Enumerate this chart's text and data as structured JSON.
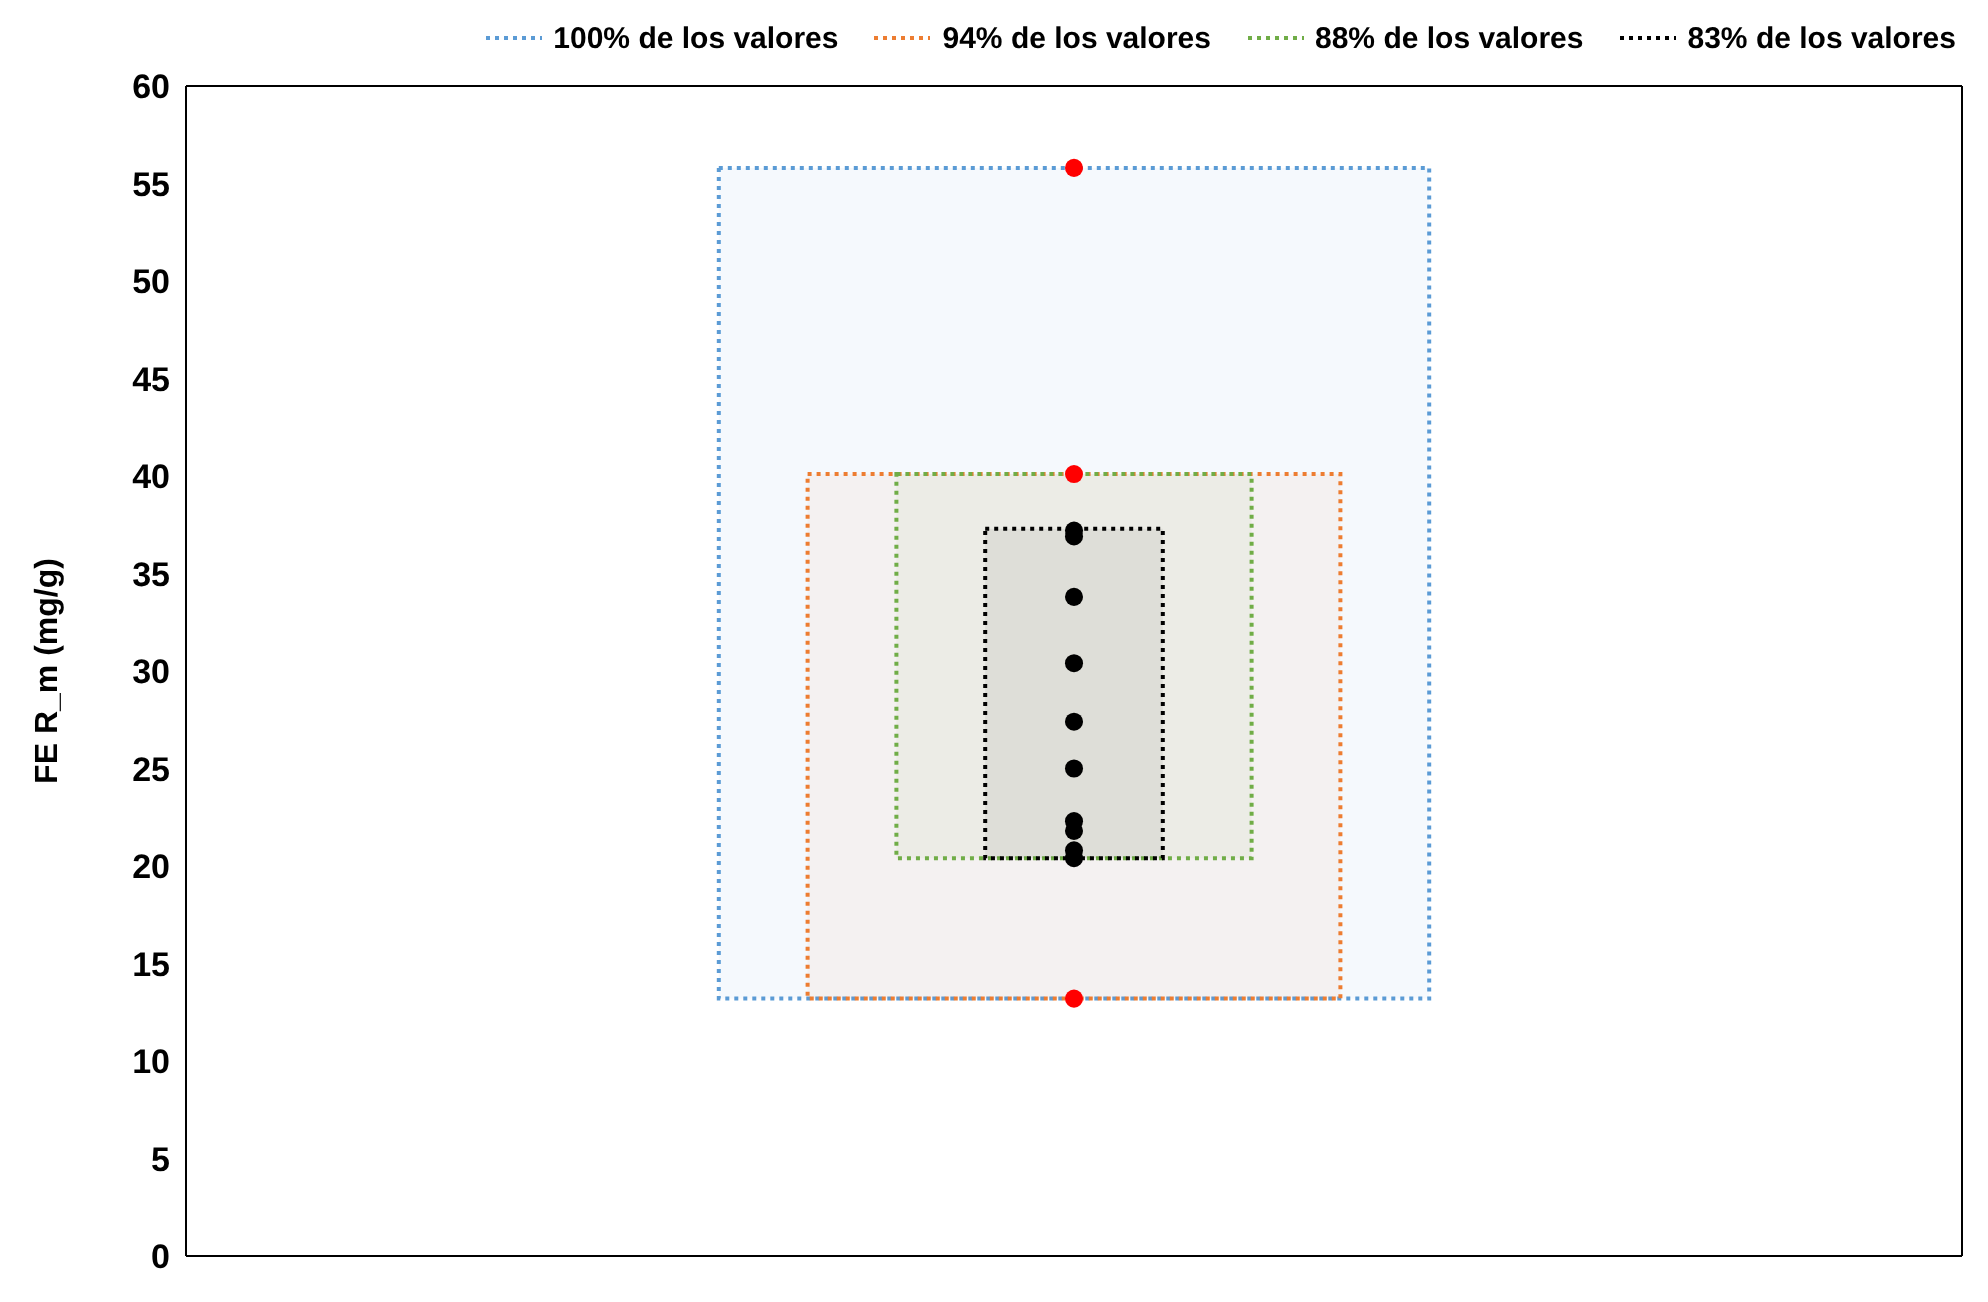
{
  "chart_data": {
    "type": "scatter",
    "ylabel": "FE R_m (mg/g)",
    "categories": [
      null
    ],
    "ylim": [
      0,
      60
    ],
    "yticks": [
      0,
      5,
      10,
      15,
      20,
      25,
      30,
      35,
      40,
      45,
      50,
      55,
      60
    ],
    "grid": false,
    "marker": "circle",
    "legend": "top",
    "bands": [
      {
        "axis": "y",
        "from": 13.2,
        "to": 55.8,
        "label": "100% de los valores",
        "color": "#5b9bd5"
      },
      {
        "axis": "y",
        "from": 13.2,
        "to": 40.1,
        "label": "94% de los valores",
        "color": "#ed7d31"
      },
      {
        "axis": "y",
        "from": 20.4,
        "to": 40.1,
        "label": "88% de los valores",
        "color": "#70ad47"
      },
      {
        "axis": "y",
        "from": 20.4,
        "to": 37.3,
        "label": "83% de los valores",
        "color": "#000000"
      }
    ],
    "series": [
      {
        "color": "#ff0000",
        "x": [
          null,
          null,
          null
        ],
        "values": [
          55.8,
          40.1,
          13.2
        ]
      },
      {
        "color": "#000000",
        "x": [
          null,
          null,
          null,
          null,
          null,
          null,
          null,
          null,
          null,
          null
        ],
        "values": [
          37.2,
          36.9,
          33.8,
          30.4,
          27.4,
          25.0,
          22.3,
          21.8,
          20.8,
          20.4
        ]
      }
    ]
  }
}
